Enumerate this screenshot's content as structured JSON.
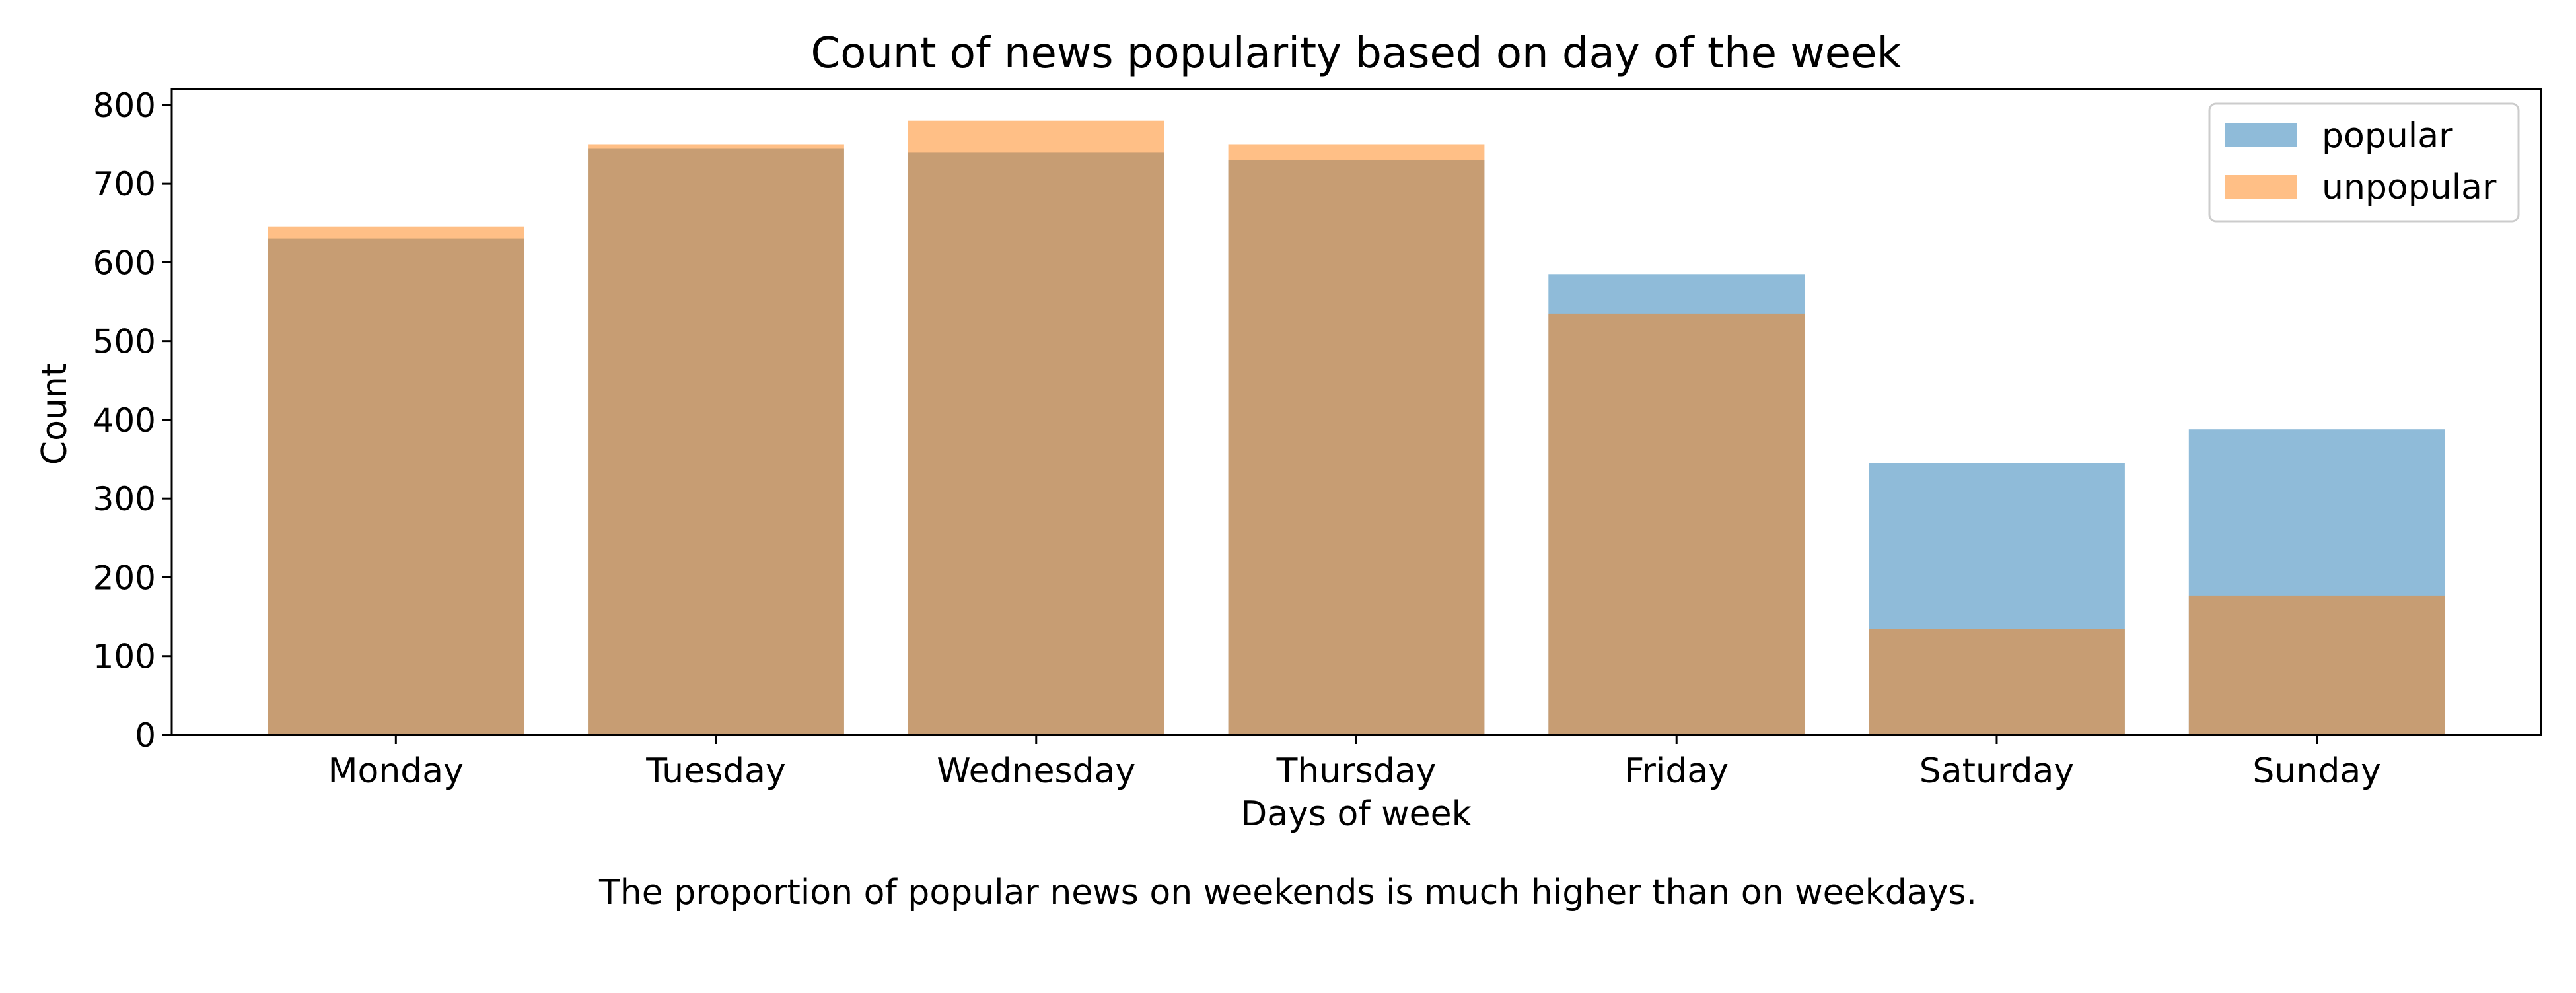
{
  "chart_data": {
    "type": "bar",
    "title": "Count of news popularity based on day of the week",
    "xlabel": "Days of week",
    "ylabel": "Count",
    "categories": [
      "Monday",
      "Tuesday",
      "Wednesday",
      "Thursday",
      "Friday",
      "Saturday",
      "Sunday"
    ],
    "series": [
      {
        "name": "popular",
        "color": "#1f77b4",
        "values": [
          630,
          745,
          740,
          730,
          585,
          345,
          388
        ]
      },
      {
        "name": "unpopular",
        "color": "#ff7f0e",
        "values": [
          645,
          750,
          780,
          750,
          535,
          135,
          177
        ]
      }
    ],
    "ylim": [
      0,
      820
    ],
    "yticks": [
      0,
      100,
      200,
      300,
      400,
      500,
      600,
      700,
      800
    ],
    "grid": false,
    "legend_position": "top-right",
    "bar_style": "overlaid-translucent"
  },
  "caption": "The proportion of popular news on weekends is much higher than on weekdays."
}
